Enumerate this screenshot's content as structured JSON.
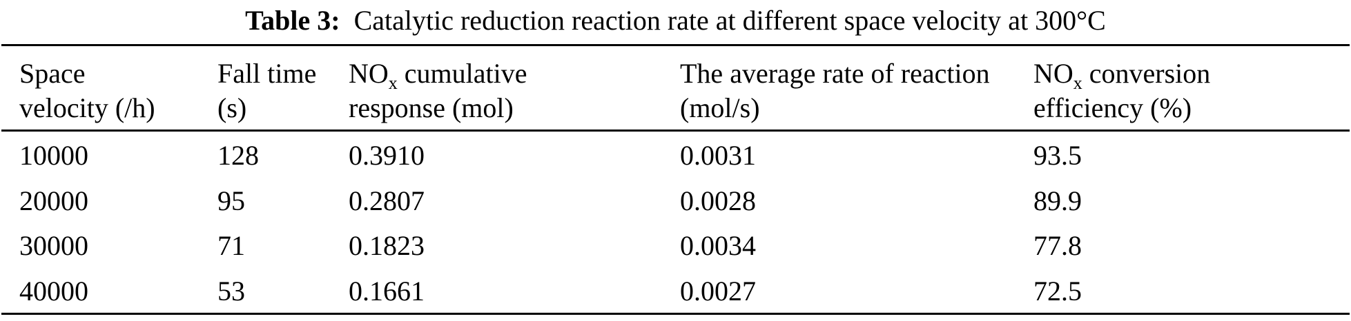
{
  "caption": {
    "label": "Table 3:",
    "text": "Catalytic reduction reaction rate at different space velocity at 300°C"
  },
  "table": {
    "columns": [
      {
        "line1_pre": "Space",
        "line1_sub": "",
        "line1_post": "",
        "line2": "velocity (/h)"
      },
      {
        "line1_pre": "Fall time",
        "line1_sub": "",
        "line1_post": "",
        "line2": "(s)"
      },
      {
        "line1_pre": "NO",
        "line1_sub": "x",
        "line1_post": " cumulative",
        "line2": "response (mol)"
      },
      {
        "line1_pre": "The average rate of reaction",
        "line1_sub": "",
        "line1_post": "",
        "line2": "(mol/s)"
      },
      {
        "line1_pre": "NO",
        "line1_sub": "x",
        "line1_post": " conversion",
        "line2": "efficiency (%)"
      }
    ],
    "rows": [
      [
        "10000",
        "128",
        "0.3910",
        "0.0031",
        "93.5"
      ],
      [
        "20000",
        "95",
        "0.2807",
        "0.0028",
        "89.9"
      ],
      [
        "30000",
        "71",
        "0.1823",
        "0.0034",
        "77.8"
      ],
      [
        "40000",
        "53",
        "0.1661",
        "0.0027",
        "72.5"
      ]
    ]
  },
  "chart_data": {
    "type": "table",
    "title": "Table 3: Catalytic reduction reaction rate at different space velocity at 300°C",
    "columns": [
      "Space velocity (/h)",
      "Fall time (s)",
      "NOx cumulative response (mol)",
      "The average rate of reaction (mol/s)",
      "NOx conversion efficiency (%)"
    ],
    "rows": [
      [
        10000,
        128,
        0.391,
        0.0031,
        93.5
      ],
      [
        20000,
        95,
        0.2807,
        0.0028,
        89.9
      ],
      [
        30000,
        71,
        0.1823,
        0.0034,
        77.8
      ],
      [
        40000,
        53,
        0.1661,
        0.0027,
        72.5
      ]
    ]
  }
}
